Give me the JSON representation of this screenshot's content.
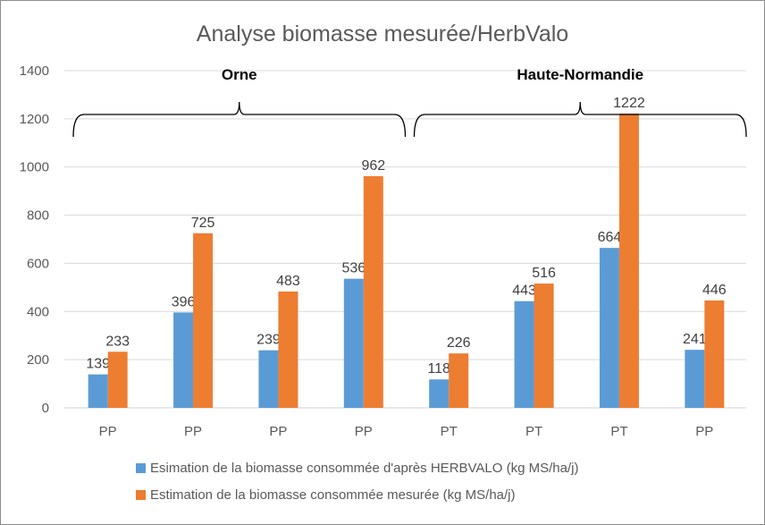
{
  "chart_data": {
    "type": "bar",
    "title": "Analyse biomasse mesurée/HerbValo",
    "xlabel": "",
    "ylabel": "",
    "ylim": [
      0,
      1400
    ],
    "yticks": [
      "0",
      "200",
      "400",
      "600",
      "800",
      "1000",
      "1200",
      "1400"
    ],
    "categories": [
      "PP",
      "PP",
      "PP",
      "PP",
      "PT",
      "PT",
      "PT",
      "PP"
    ],
    "series": [
      {
        "name": "Esimation de la biomasse consommée d'après HERBVALO (kg MS/ha/j)",
        "color": "#5b9bd5",
        "values": [
          139,
          396,
          239,
          536,
          118,
          443,
          664,
          241
        ]
      },
      {
        "name": "Estimation de la biomasse consommée mesurée (kg MS/ha/j)",
        "color": "#ed7d31",
        "values": [
          233,
          725,
          483,
          962,
          226,
          516,
          1222,
          446
        ]
      }
    ],
    "groups": [
      {
        "label": "Orne",
        "categories": [
          0,
          3
        ]
      },
      {
        "label": "Haute-Normandie",
        "categories": [
          4,
          7
        ]
      }
    ],
    "grid": true,
    "legend": "bottom"
  }
}
